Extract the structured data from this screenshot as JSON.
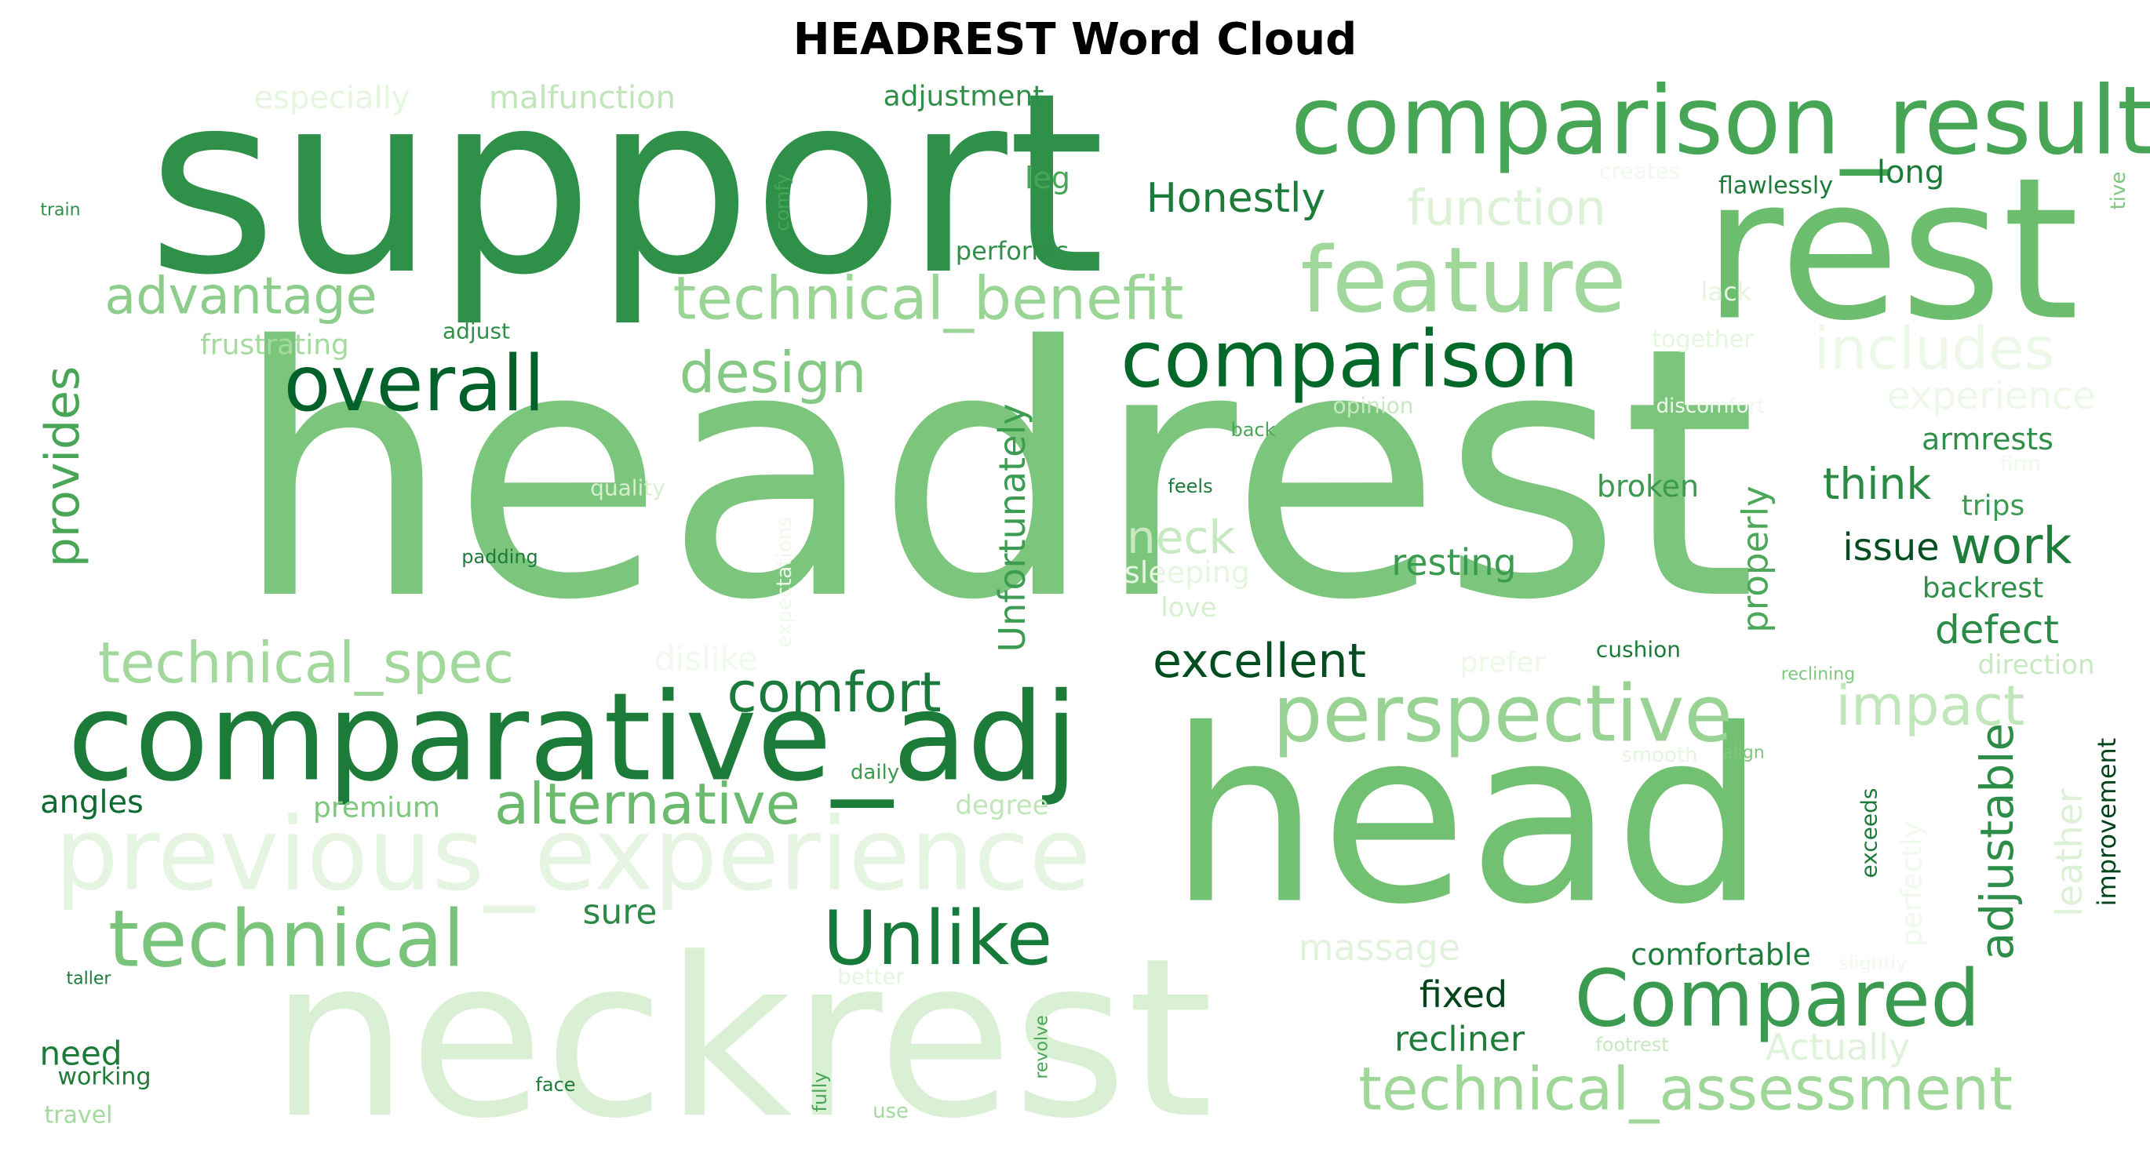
{
  "chart_data": {
    "type": "wordcloud",
    "title": "HEADREST Word Cloud",
    "colormap": "greens",
    "words": [
      {
        "text": "headrest",
        "weight": 1.0,
        "color": "#7cc57c"
      },
      {
        "text": "support",
        "weight": 0.62,
        "color": "#2f9149"
      },
      {
        "text": "head",
        "weight": 0.6,
        "color": "#72c173"
      },
      {
        "text": "neckrest",
        "weight": 0.55,
        "color": "#d9f0d4"
      },
      {
        "text": "rest",
        "weight": 0.42,
        "color": "#6dbd6e"
      },
      {
        "text": "comparative_adj",
        "weight": 0.3,
        "color": "#1d7b3a"
      },
      {
        "text": "comparison_result",
        "weight": 0.27,
        "color": "#47a556"
      },
      {
        "text": "previous_experience",
        "weight": 0.26,
        "color": "#e6f5e1"
      },
      {
        "text": "feature",
        "weight": 0.24,
        "color": "#a0d79a"
      },
      {
        "text": "comparison",
        "weight": 0.22,
        "color": "#00692a"
      },
      {
        "text": "Compared",
        "weight": 0.21,
        "color": "#3a9b50"
      },
      {
        "text": "perspective",
        "weight": 0.21,
        "color": "#98d393"
      },
      {
        "text": "technical",
        "weight": 0.21,
        "color": "#79c47a"
      },
      {
        "text": "Unlike",
        "weight": 0.2,
        "color": "#167a3b"
      },
      {
        "text": "overall",
        "weight": 0.18,
        "color": "#00622a"
      },
      {
        "text": "technical_benefit",
        "weight": 0.16,
        "color": "#9ad596"
      },
      {
        "text": "technical_assessment",
        "weight": 0.16,
        "color": "#9ed797"
      },
      {
        "text": "technical_spec",
        "weight": 0.15,
        "color": "#a2d89c"
      },
      {
        "text": "alternative",
        "weight": 0.14,
        "color": "#6bba6d"
      },
      {
        "text": "comfort",
        "weight": 0.14,
        "color": "#1a7a3b"
      },
      {
        "text": "design",
        "weight": 0.14,
        "color": "#85c985"
      },
      {
        "text": "advantage",
        "weight": 0.13,
        "color": "#8ccd8b"
      },
      {
        "text": "includes",
        "weight": 0.14,
        "color": "#edf8e9"
      },
      {
        "text": "impact",
        "weight": 0.13,
        "color": "#c2e6bb"
      },
      {
        "text": "adjustable",
        "weight": 0.13,
        "color": "#2d8c48"
      },
      {
        "text": "excellent",
        "weight": 0.12,
        "color": "#004d1f"
      },
      {
        "text": "function",
        "weight": 0.12,
        "color": "#dcf1d6"
      },
      {
        "text": "work",
        "weight": 0.12,
        "color": "#1f7d3c"
      },
      {
        "text": "Unfortunately",
        "weight": 0.11,
        "color": "#3c9c52"
      },
      {
        "text": "provides",
        "weight": 0.11,
        "color": "#4aa657"
      },
      {
        "text": "neck",
        "weight": 0.11,
        "color": "#c7e8c0"
      },
      {
        "text": "Honestly",
        "weight": 0.1,
        "color": "#1d7b3a"
      },
      {
        "text": "think",
        "weight": 0.1,
        "color": "#2a8a45"
      },
      {
        "text": "properly",
        "weight": 0.09,
        "color": "#4ca759"
      },
      {
        "text": "resting",
        "weight": 0.09,
        "color": "#3a9a50"
      },
      {
        "text": "experience",
        "weight": 0.09,
        "color": "#eef8ea"
      },
      {
        "text": "massage",
        "weight": 0.09,
        "color": "#e2f3dd"
      },
      {
        "text": "defect",
        "weight": 0.09,
        "color": "#2b8b46"
      },
      {
        "text": "Actually",
        "weight": 0.09,
        "color": "#dff2da"
      },
      {
        "text": "leather",
        "weight": 0.09,
        "color": "#dcf1d6"
      },
      {
        "text": "issue",
        "weight": 0.09,
        "color": "#004d1f"
      },
      {
        "text": "fixed",
        "weight": 0.08,
        "color": "#00441b"
      },
      {
        "text": "recliner",
        "weight": 0.08,
        "color": "#1f7d3c"
      },
      {
        "text": "sure",
        "weight": 0.08,
        "color": "#2a8a45"
      },
      {
        "text": "need",
        "weight": 0.08,
        "color": "#1d7b3a"
      },
      {
        "text": "angles",
        "weight": 0.08,
        "color": "#0b6b30"
      },
      {
        "text": "malfunction",
        "weight": 0.08,
        "color": "#bfe5b8"
      },
      {
        "text": "especially",
        "weight": 0.08,
        "color": "#e5f5e0"
      },
      {
        "text": "comfortable",
        "weight": 0.08,
        "color": "#1f7d3c"
      },
      {
        "text": "dislike",
        "weight": 0.08,
        "color": "#f0f9ed"
      },
      {
        "text": "armrests",
        "weight": 0.07,
        "color": "#2f8f48"
      },
      {
        "text": "adjustment",
        "weight": 0.07,
        "color": "#2f8f48"
      },
      {
        "text": "broken",
        "weight": 0.07,
        "color": "#3b9a50"
      },
      {
        "text": "trips",
        "weight": 0.07,
        "color": "#3b9a50"
      },
      {
        "text": "backrest",
        "weight": 0.07,
        "color": "#2f8f48"
      },
      {
        "text": "long",
        "weight": 0.07,
        "color": "#1d7b3a"
      },
      {
        "text": "leg",
        "weight": 0.07,
        "color": "#4aa657"
      },
      {
        "text": "improvement",
        "weight": 0.07,
        "color": "#00441b"
      },
      {
        "text": "perfectly",
        "weight": 0.07,
        "color": "#f0f9ed"
      },
      {
        "text": "premium",
        "weight": 0.07,
        "color": "#7fc77f"
      },
      {
        "text": "performs",
        "weight": 0.06,
        "color": "#2f8f48"
      },
      {
        "text": "frustrating",
        "weight": 0.06,
        "color": "#a5da9f"
      },
      {
        "text": "prefer",
        "weight": 0.06,
        "color": "#eef8ea"
      },
      {
        "text": "love",
        "weight": 0.06,
        "color": "#d5efcf"
      },
      {
        "text": "sleeping",
        "weight": 0.06,
        "color": "#e5f5e0"
      },
      {
        "text": "degree",
        "weight": 0.06,
        "color": "#bfe5b8"
      },
      {
        "text": "expectations",
        "weight": 0.06,
        "color": "#f0f9ed"
      },
      {
        "text": "direction",
        "weight": 0.06,
        "color": "#c7e8c0"
      },
      {
        "text": "exceeds",
        "weight": 0.06,
        "color": "#1d7b3a"
      },
      {
        "text": "flawlessly",
        "weight": 0.05,
        "color": "#1d7b3a"
      },
      {
        "text": "together",
        "weight": 0.05,
        "color": "#e5f5e0"
      },
      {
        "text": "lack",
        "weight": 0.05,
        "color": "#e5f5e0"
      },
      {
        "text": "creates",
        "weight": 0.05,
        "color": "#f0f9ed"
      },
      {
        "text": "tive",
        "weight": 0.05,
        "color": "#7fc77f"
      },
      {
        "text": "opinion",
        "weight": 0.05,
        "color": "#c7e8c0"
      },
      {
        "text": "discomfort",
        "weight": 0.05,
        "color": "#f0f9ed"
      },
      {
        "text": "firm",
        "weight": 0.05,
        "color": "#f0f9ed"
      },
      {
        "text": "quality",
        "weight": 0.05,
        "color": "#d5efcf"
      },
      {
        "text": "cushion",
        "weight": 0.05,
        "color": "#1d7b3a"
      },
      {
        "text": "adjust",
        "weight": 0.05,
        "color": "#2f8f48"
      },
      {
        "text": "comfy",
        "weight": 0.05,
        "color": "#4aa657"
      },
      {
        "text": "daily",
        "weight": 0.05,
        "color": "#3b9a50"
      },
      {
        "text": "better",
        "weight": 0.05,
        "color": "#e5f5e0"
      },
      {
        "text": "working",
        "weight": 0.05,
        "color": "#1d7b3a"
      },
      {
        "text": "travel",
        "weight": 0.05,
        "color": "#a5da9f"
      },
      {
        "text": "smooth",
        "weight": 0.04,
        "color": "#e5f5e0"
      },
      {
        "text": "align",
        "weight": 0.04,
        "color": "#7fc77f"
      },
      {
        "text": "reclining",
        "weight": 0.04,
        "color": "#7fc77f"
      },
      {
        "text": "slightly",
        "weight": 0.04,
        "color": "#f0f9ed"
      },
      {
        "text": "footrest",
        "weight": 0.04,
        "color": "#c7e8c0"
      },
      {
        "text": "back",
        "weight": 0.04,
        "color": "#4aa657"
      },
      {
        "text": "feels",
        "weight": 0.04,
        "color": "#1d7b3a"
      },
      {
        "text": "padding",
        "weight": 0.04,
        "color": "#1d7b3a"
      },
      {
        "text": "train",
        "weight": 0.04,
        "color": "#2f8f48"
      },
      {
        "text": "taller",
        "weight": 0.04,
        "color": "#1d7b3a"
      },
      {
        "text": "face",
        "weight": 0.04,
        "color": "#1d7b3a"
      },
      {
        "text": "revolve",
        "weight": 0.04,
        "color": "#4aa657"
      },
      {
        "text": "fully",
        "weight": 0.04,
        "color": "#4aa657"
      },
      {
        "text": "use",
        "weight": 0.04,
        "color": "#a5da9f"
      }
    ]
  }
}
